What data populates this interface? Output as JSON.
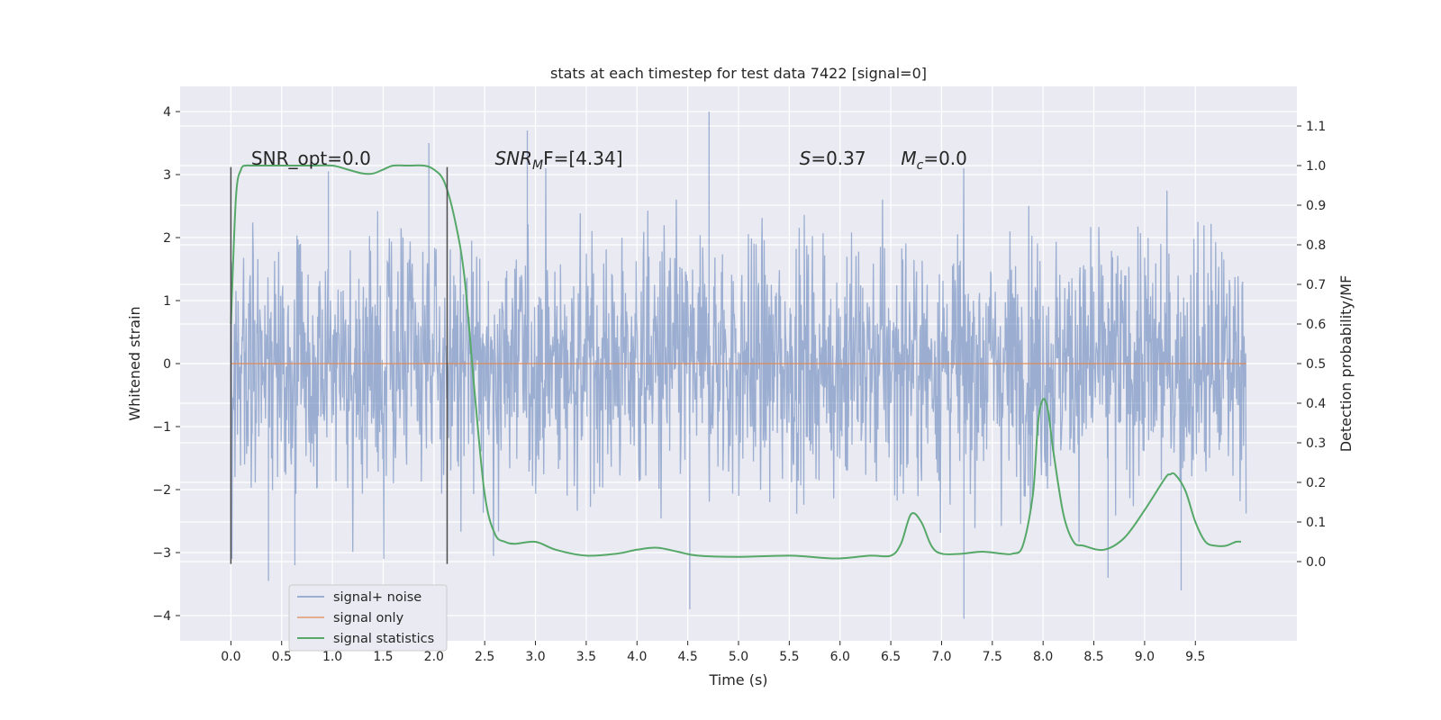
{
  "chart_data": {
    "type": "line",
    "title": "stats at each timestep for test data 7422 [signal=0]",
    "xlabel": "Time (s)",
    "ylabel_left": "Whitened strain",
    "ylabel_right": "Detection probability/MF",
    "xlim": [
      -0.5,
      10.5
    ],
    "ylim_left": [
      -4.4,
      4.4
    ],
    "ylim_right": [
      -0.2,
      1.2
    ],
    "x_ticks": [
      0.0,
      0.5,
      1.0,
      1.5,
      2.0,
      2.5,
      3.0,
      3.5,
      4.0,
      4.5,
      5.0,
      5.5,
      6.0,
      6.5,
      7.0,
      7.5,
      8.0,
      8.5,
      9.0,
      9.5
    ],
    "x_tick_labels": [
      "0.0",
      "0.5",
      "1.0",
      "1.5",
      "2.0",
      "2.5",
      "3.0",
      "3.5",
      "4.0",
      "4.5",
      "5.0",
      "5.5",
      "6.0",
      "6.5",
      "7.0",
      "7.5",
      "8.0",
      "8.5",
      "9.0",
      "9.5"
    ],
    "y_left_ticks": [
      -4,
      -3,
      -2,
      -1,
      0,
      1,
      2,
      3,
      4
    ],
    "y_left_tick_labels": [
      "−4",
      "−3",
      "−2",
      "−1",
      "0",
      "1",
      "2",
      "3",
      "4"
    ],
    "y_right_ticks": [
      0.0,
      0.1,
      0.2,
      0.3,
      0.4,
      0.5,
      0.6,
      0.7,
      0.8,
      0.9,
      1.0,
      1.1
    ],
    "y_right_tick_labels": [
      "0.0",
      "0.1",
      "0.2",
      "0.3",
      "0.4",
      "0.5",
      "0.6",
      "0.7",
      "0.8",
      "0.9",
      "1.0",
      "1.1"
    ],
    "grid": true,
    "legend_position": "lower-left",
    "series": [
      {
        "name": "signal+ noise",
        "color": "#4c72b0",
        "axis": "left",
        "style": "dense noisy line, amplitude roughly ±2.5, spikes up to 4.0 and down to −3.9",
        "x_range": [
          0.0,
          10.0
        ],
        "peaks": [
          [
            0.96,
            3.05
          ],
          [
            1.95,
            3.5
          ],
          [
            2.92,
            3.7
          ],
          [
            4.71,
            4.0
          ],
          [
            4.52,
            -3.9
          ],
          [
            7.22,
            -4.05
          ],
          [
            9.36,
            -3.6
          ],
          [
            0.37,
            -3.45
          ],
          [
            0.63,
            -3.2
          ],
          [
            8.64,
            -3.4
          ]
        ]
      },
      {
        "name": "signal only",
        "color": "#dd8452",
        "axis": "left",
        "x": [
          0.0,
          10.0
        ],
        "y": [
          0.0,
          0.0
        ]
      },
      {
        "name": "signal statistics",
        "color": "#55a868",
        "axis": "right",
        "x": [
          0.0,
          0.05,
          0.1,
          0.15,
          0.2,
          0.4,
          0.6,
          0.8,
          1.0,
          1.15,
          1.3,
          1.4,
          1.5,
          1.6,
          1.75,
          1.9,
          2.0,
          2.1,
          2.2,
          2.3,
          2.4,
          2.5,
          2.6,
          2.7,
          2.8,
          3.0,
          3.2,
          3.5,
          3.8,
          4.0,
          4.2,
          4.4,
          4.6,
          5.0,
          5.5,
          5.8,
          6.0,
          6.3,
          6.5,
          6.6,
          6.7,
          6.8,
          6.9,
          7.0,
          7.2,
          7.4,
          7.6,
          7.7,
          7.8,
          7.9,
          7.95,
          8.0,
          8.05,
          8.1,
          8.2,
          8.3,
          8.4,
          8.6,
          8.8,
          9.0,
          9.2,
          9.25,
          9.3,
          9.4,
          9.5,
          9.6,
          9.7,
          9.8,
          9.9,
          9.95
        ],
        "y": [
          0.6,
          0.92,
          0.99,
          1.0,
          1.0,
          1.0,
          1.0,
          1.0,
          1.0,
          0.99,
          0.98,
          0.98,
          0.99,
          1.0,
          1.0,
          1.0,
          0.99,
          0.96,
          0.87,
          0.72,
          0.43,
          0.17,
          0.07,
          0.05,
          0.045,
          0.05,
          0.03,
          0.015,
          0.02,
          0.03,
          0.035,
          0.025,
          0.015,
          0.012,
          0.015,
          0.01,
          0.008,
          0.015,
          0.015,
          0.045,
          0.12,
          0.1,
          0.04,
          0.02,
          0.02,
          0.025,
          0.02,
          0.02,
          0.04,
          0.17,
          0.35,
          0.41,
          0.38,
          0.28,
          0.12,
          0.05,
          0.04,
          0.03,
          0.06,
          0.13,
          0.21,
          0.22,
          0.22,
          0.18,
          0.1,
          0.05,
          0.04,
          0.04,
          0.05,
          0.05
        ]
      }
    ],
    "vertical_markers": [
      0.0,
      2.13
    ],
    "annotations": [
      {
        "text": "SNR_opt=0.0",
        "x": 0.2,
        "y_right": 1.0
      },
      {
        "text": "SNR",
        "sub": "M",
        "tail": "F=[4.34]",
        "x": 2.6,
        "y_right": 1.0
      },
      {
        "text": "S",
        "tail": "=0.37",
        "x": 5.6,
        "y_right": 1.0
      },
      {
        "text": "M",
        "sub": "c",
        "tail": "=0.0",
        "x": 6.6,
        "y_right": 1.0
      }
    ],
    "colors": {
      "background": "#eaeaf2",
      "grid": "#ffffff",
      "marker": "#4d4d4d"
    }
  }
}
